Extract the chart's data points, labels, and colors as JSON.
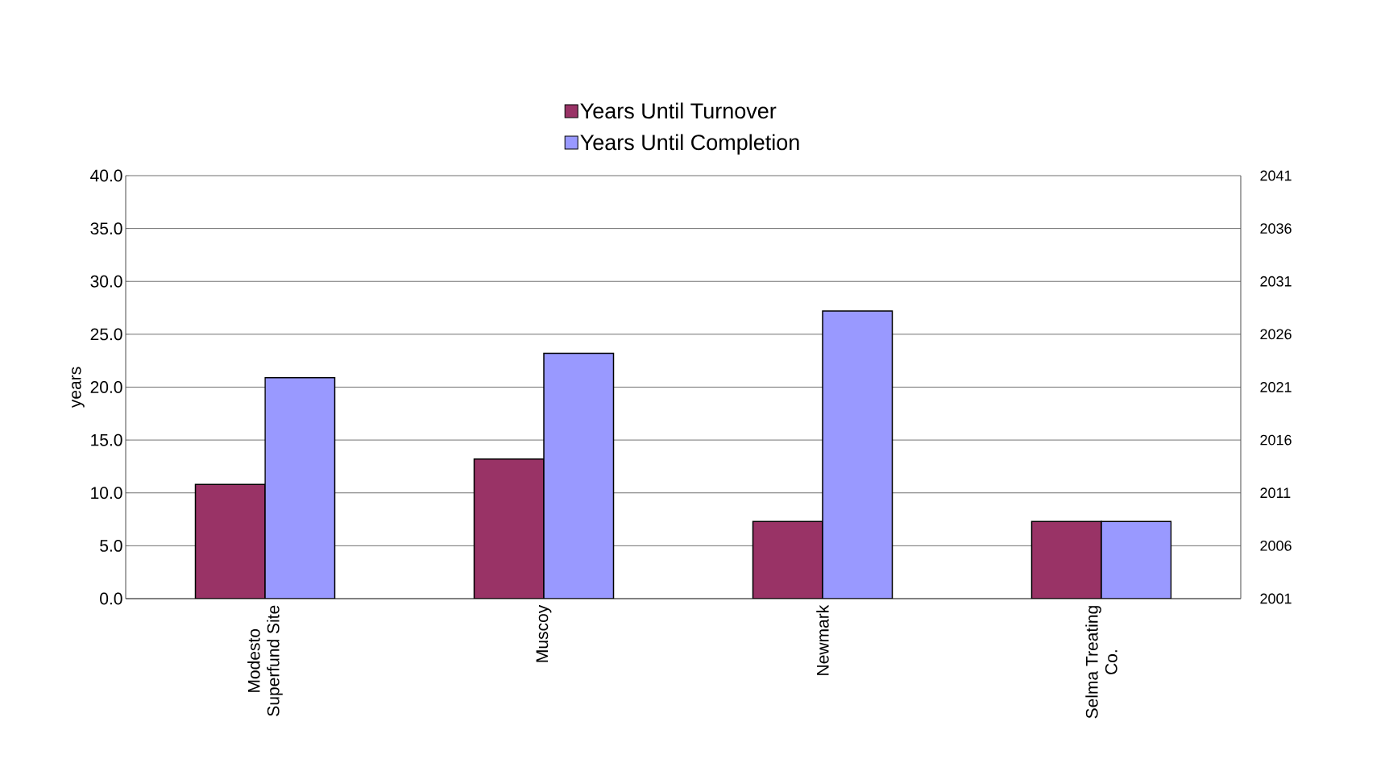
{
  "chart_data": {
    "type": "bar",
    "ylabel": "years",
    "categories": [
      "Modesto Superfund Site",
      "Muscoy",
      "Newmark",
      "Selma Treating Co."
    ],
    "series": [
      {
        "name": "Years Until Turnover",
        "color": "#993366",
        "values": [
          10.8,
          13.2,
          7.3,
          7.3
        ]
      },
      {
        "name": "Years Until Completion",
        "color": "#9999ff",
        "values": [
          20.9,
          23.2,
          27.2,
          7.3
        ]
      }
    ],
    "ylim": [
      0,
      40
    ],
    "yticks": [
      {
        "value": 0,
        "label": "0.0"
      },
      {
        "value": 5,
        "label": "5.0"
      },
      {
        "value": 10,
        "label": "10.0"
      },
      {
        "value": 15,
        "label": "15.0"
      },
      {
        "value": 20,
        "label": "20.0"
      },
      {
        "value": 25,
        "label": "25.0"
      },
      {
        "value": 30,
        "label": "30.0"
      },
      {
        "value": 35,
        "label": "35.0"
      },
      {
        "value": 40,
        "label": "40.0"
      }
    ],
    "y2lim": [
      2001,
      2041
    ],
    "y2ticks": [
      2001,
      2006,
      2011,
      2016,
      2021,
      2026,
      2031,
      2036,
      2041
    ],
    "grid": "y",
    "legend": "top"
  }
}
